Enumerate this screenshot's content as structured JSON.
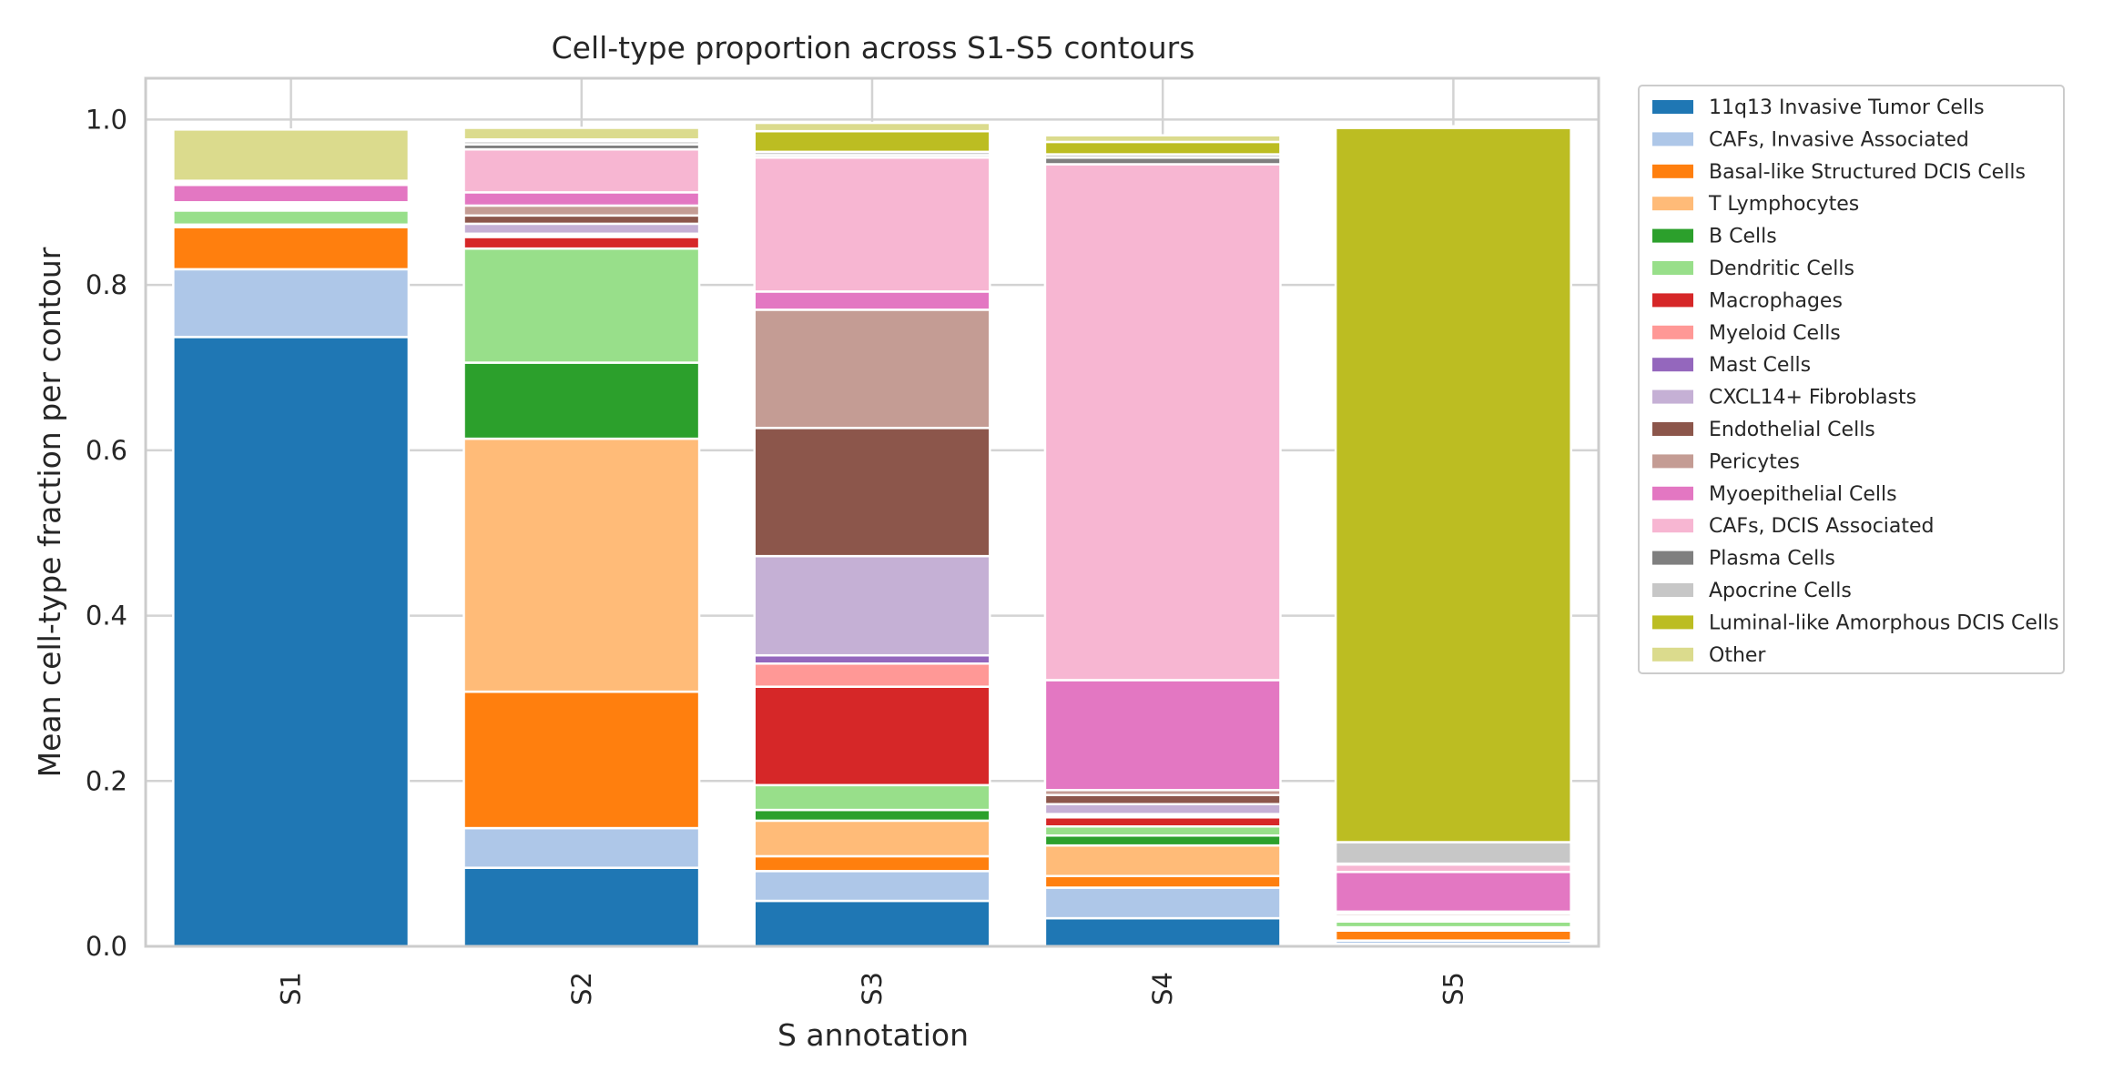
{
  "chart_data": {
    "type": "bar",
    "stacked": true,
    "title": "Cell-type proportion across S1-S5 contours",
    "xlabel": "S annotation",
    "ylabel": "Mean cell-type fraction per contour",
    "ylim": [
      0,
      1.05
    ],
    "yticks": [
      "0.0",
      "0.2",
      "0.4",
      "0.6",
      "0.8",
      "1.0"
    ],
    "ytick_values": [
      0,
      0.2,
      0.4,
      0.6,
      0.8,
      1.0
    ],
    "grid": true,
    "legend_position": "outside-right",
    "categories": [
      "S1",
      "S2",
      "S3",
      "S4",
      "S5"
    ],
    "series": [
      {
        "name": "11q13 Invasive Tumor Cells",
        "color": "#1f77b4",
        "values": [
          0.737,
          0.095,
          0.055,
          0.034,
          0.003
        ]
      },
      {
        "name": "CAFs, Invasive Associated",
        "color": "#aec7e8",
        "values": [
          0.082,
          0.048,
          0.036,
          0.037,
          0.004
        ]
      },
      {
        "name": "Basal-like Structured DCIS Cells",
        "color": "#ff7f0e",
        "values": [
          0.051,
          0.165,
          0.018,
          0.014,
          0.012
        ]
      },
      {
        "name": "T Lymphocytes",
        "color": "#ffbb78",
        "values": [
          0.002,
          0.306,
          0.043,
          0.037,
          0.002
        ]
      },
      {
        "name": "B Cells",
        "color": "#2ca02c",
        "values": [
          0.001,
          0.092,
          0.013,
          0.012,
          0.002
        ]
      },
      {
        "name": "Dendritic Cells",
        "color": "#98df8a",
        "values": [
          0.017,
          0.138,
          0.03,
          0.011,
          0.007
        ]
      },
      {
        "name": "Macrophages",
        "color": "#d62728",
        "values": [
          0.002,
          0.014,
          0.119,
          0.011,
          0.002
        ]
      },
      {
        "name": "Myeloid Cells",
        "color": "#ff9896",
        "values": [
          0.002,
          0.002,
          0.028,
          0.002,
          0.002
        ]
      },
      {
        "name": "Mast Cells",
        "color": "#9467bd",
        "values": [
          0.001,
          0.002,
          0.01,
          0.002,
          0.001
        ]
      },
      {
        "name": "CXCL14+ Fibroblasts",
        "color": "#c5b0d5",
        "values": [
          0.002,
          0.012,
          0.12,
          0.012,
          0.002
        ]
      },
      {
        "name": "Endothelial Cells",
        "color": "#8c564b",
        "values": [
          0.002,
          0.01,
          0.155,
          0.011,
          0.003
        ]
      },
      {
        "name": "Pericytes",
        "color": "#c49c94",
        "values": [
          0.001,
          0.012,
          0.143,
          0.006,
          0.002
        ]
      },
      {
        "name": "Myoepithelial Cells",
        "color": "#e377c2",
        "values": [
          0.021,
          0.016,
          0.022,
          0.133,
          0.048
        ]
      },
      {
        "name": "CAFs, DCIS Associated",
        "color": "#f7b6d2",
        "values": [
          0.002,
          0.052,
          0.162,
          0.624,
          0.009
        ]
      },
      {
        "name": "Plasma Cells",
        "color": "#7f7f7f",
        "values": [
          0.001,
          0.006,
          0.003,
          0.008,
          0.001
        ]
      },
      {
        "name": "Apocrine Cells",
        "color": "#c7c7c7",
        "values": [
          0.001,
          0.004,
          0.004,
          0.004,
          0.026
        ]
      },
      {
        "name": "Luminal-like Amorphous DCIS Cells",
        "color": "#bcbd22",
        "values": [
          0.001,
          0.002,
          0.025,
          0.015,
          0.864
        ]
      },
      {
        "name": "Other",
        "color": "#dbdb8d",
        "values": [
          0.062,
          0.014,
          0.01,
          0.008,
          0.002
        ]
      }
    ]
  }
}
